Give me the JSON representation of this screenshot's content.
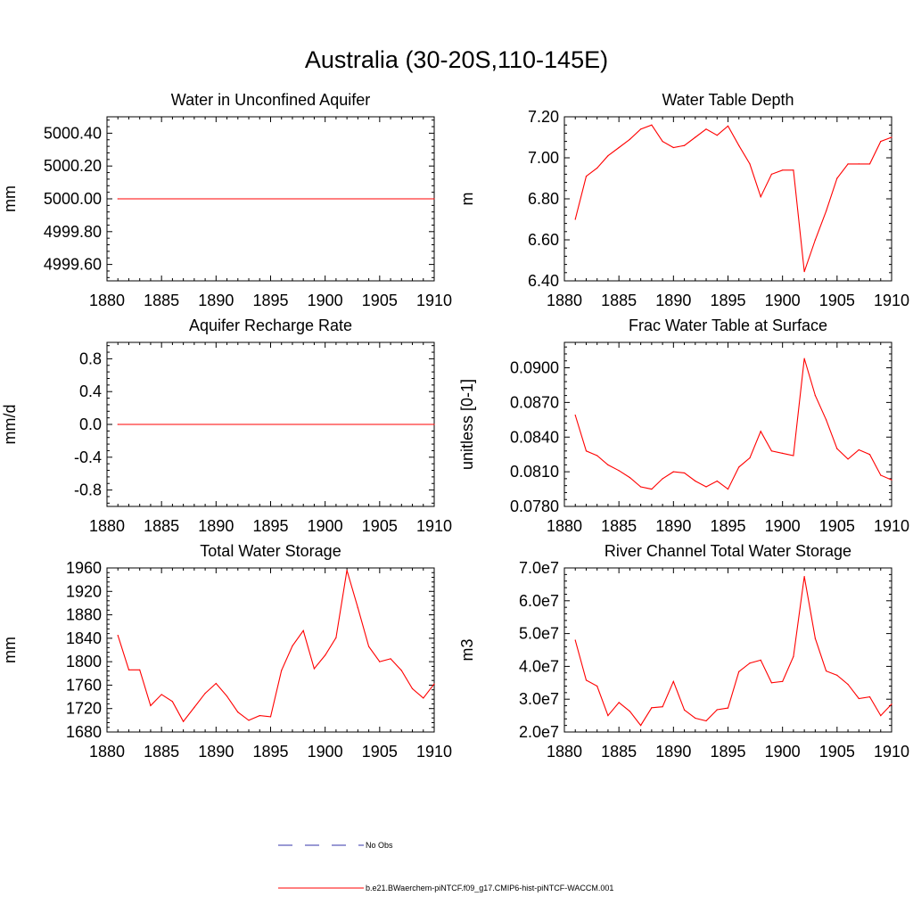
{
  "title": "Australia (30-20S,110-145E)",
  "colors": {
    "model": "#ff0000",
    "obs": "#3333aa",
    "axis": "#000000"
  },
  "legend": {
    "obs_label": "No Obs",
    "model_label": "b.e21.BWaerchem-piNTCF.f09_g17.CMIP6-hist-piNTCF-WACCM.001"
  },
  "chart_data": [
    {
      "type": "line",
      "title": "Water in Unconfined Aquifer",
      "xlabel": "",
      "ylabel": "mm",
      "xlim": [
        1880,
        1910
      ],
      "ylim": [
        4999.5,
        5000.5
      ],
      "xticks": [
        1880,
        1885,
        1890,
        1895,
        1900,
        1905,
        1910
      ],
      "xtick_labels": [
        "1880",
        "1885",
        "1890",
        "1895",
        "1900",
        "1905",
        "1910"
      ],
      "yticks": [
        4999.6,
        4999.8,
        5000.0,
        5000.2,
        5000.4
      ],
      "ytick_labels": [
        "4999.60",
        "4999.80",
        "5000.00",
        "5000.20",
        "5000.40"
      ],
      "series": [
        {
          "x": [
            1881,
            1910
          ],
          "y": [
            5000.0,
            5000.0
          ]
        }
      ]
    },
    {
      "type": "line",
      "title": "Water Table Depth",
      "xlabel": "",
      "ylabel": "m",
      "xlim": [
        1880,
        1910
      ],
      "ylim": [
        6.4,
        7.2
      ],
      "xticks": [
        1880,
        1885,
        1890,
        1895,
        1900,
        1905,
        1910
      ],
      "xtick_labels": [
        "1880",
        "1885",
        "1890",
        "1895",
        "1900",
        "1905",
        "1910"
      ],
      "yticks": [
        6.4,
        6.6,
        6.8,
        7.0,
        7.2
      ],
      "ytick_labels": [
        "6.40",
        "6.60",
        "6.80",
        "7.00",
        "7.20"
      ],
      "series": [
        {
          "x": [
            1881,
            1882,
            1883,
            1884,
            1885,
            1886,
            1887,
            1888,
            1889,
            1890,
            1891,
            1892,
            1893,
            1894,
            1895,
            1896,
            1897,
            1898,
            1899,
            1900,
            1901,
            1902,
            1903,
            1904,
            1905,
            1906,
            1907,
            1908,
            1909,
            1910
          ],
          "y": [
            6.7,
            6.91,
            6.95,
            7.01,
            7.05,
            7.09,
            7.14,
            7.16,
            7.08,
            7.05,
            7.06,
            7.1,
            7.14,
            7.11,
            7.155,
            7.06,
            6.97,
            6.81,
            6.92,
            6.94,
            6.94,
            6.445,
            6.6,
            6.74,
            6.9,
            6.97,
            6.97,
            6.97,
            7.08,
            7.1
          ]
        }
      ]
    },
    {
      "type": "line",
      "title": "Aquifer Recharge Rate",
      "xlabel": "",
      "ylabel": "mm/d",
      "xlim": [
        1880,
        1910
      ],
      "ylim": [
        -1.0,
        1.0
      ],
      "xticks": [
        1880,
        1885,
        1890,
        1895,
        1900,
        1905,
        1910
      ],
      "xtick_labels": [
        "1880",
        "1885",
        "1890",
        "1895",
        "1900",
        "1905",
        "1910"
      ],
      "yticks": [
        -0.8,
        -0.4,
        0.0,
        0.4,
        0.8
      ],
      "ytick_labels": [
        "-0.8",
        "-0.4",
        "0.0",
        "0.4",
        "0.8"
      ],
      "series": [
        {
          "x": [
            1881,
            1910
          ],
          "y": [
            0.0,
            0.0
          ]
        }
      ]
    },
    {
      "type": "line",
      "title": "Frac Water Table at Surface",
      "xlabel": "",
      "ylabel": "unitless [0-1]",
      "xlim": [
        1880,
        1910
      ],
      "ylim": [
        0.078,
        0.0922
      ],
      "xticks": [
        1880,
        1885,
        1890,
        1895,
        1900,
        1905,
        1910
      ],
      "xtick_labels": [
        "1880",
        "1885",
        "1890",
        "1895",
        "1900",
        "1905",
        "1910"
      ],
      "yticks": [
        0.078,
        0.081,
        0.084,
        0.087,
        0.09
      ],
      "ytick_labels": [
        "0.0780",
        "0.0810",
        "0.0840",
        "0.0870",
        "0.0900"
      ],
      "series": [
        {
          "x": [
            1881,
            1882,
            1883,
            1884,
            1885,
            1886,
            1887,
            1888,
            1889,
            1890,
            1891,
            1892,
            1893,
            1894,
            1895,
            1896,
            1897,
            1898,
            1899,
            1900,
            1901,
            1902,
            1903,
            1904,
            1905,
            1906,
            1907,
            1908,
            1909,
            1910
          ],
          "y": [
            0.0859,
            0.0828,
            0.0824,
            0.0816,
            0.0811,
            0.0805,
            0.0797,
            0.0795,
            0.0804,
            0.081,
            0.0809,
            0.0802,
            0.0797,
            0.0802,
            0.0795,
            0.0814,
            0.0822,
            0.0845,
            0.0828,
            0.0826,
            0.0824,
            0.0908,
            0.0876,
            0.0855,
            0.083,
            0.0821,
            0.0829,
            0.0825,
            0.0807,
            0.0803
          ]
        }
      ]
    },
    {
      "type": "line",
      "title": "Total Water Storage",
      "xlabel": "",
      "ylabel": "mm",
      "xlim": [
        1880,
        1910
      ],
      "ylim": [
        1680,
        1960
      ],
      "xticks": [
        1880,
        1885,
        1890,
        1895,
        1900,
        1905,
        1910
      ],
      "xtick_labels": [
        "1880",
        "1885",
        "1890",
        "1895",
        "1900",
        "1905",
        "1910"
      ],
      "yticks": [
        1680,
        1720,
        1760,
        1800,
        1840,
        1880,
        1920,
        1960
      ],
      "ytick_labels": [
        "1680",
        "1720",
        "1760",
        "1800",
        "1840",
        "1880",
        "1920",
        "1960"
      ],
      "series": [
        {
          "x": [
            1881,
            1882,
            1883,
            1884,
            1885,
            1886,
            1887,
            1888,
            1889,
            1890,
            1891,
            1892,
            1893,
            1894,
            1895,
            1896,
            1897,
            1898,
            1899,
            1900,
            1901,
            1902,
            1903,
            1904,
            1905,
            1906,
            1907,
            1908,
            1909,
            1910
          ],
          "y": [
            1845,
            1786,
            1786,
            1725,
            1744,
            1732,
            1698,
            1722,
            1746,
            1763,
            1741,
            1714,
            1700,
            1708,
            1706,
            1785,
            1827,
            1853,
            1788,
            1811,
            1841,
            1956,
            1892,
            1826,
            1800,
            1805,
            1785,
            1754,
            1738,
            1762
          ]
        }
      ]
    },
    {
      "type": "line",
      "title": "River Channel Total Water Storage",
      "xlabel": "",
      "ylabel": "m3",
      "xlim": [
        1880,
        1910
      ],
      "ylim": [
        20000000,
        70000000
      ],
      "xticks": [
        1880,
        1885,
        1890,
        1895,
        1900,
        1905,
        1910
      ],
      "xtick_labels": [
        "1880",
        "1885",
        "1890",
        "1895",
        "1900",
        "1905",
        "1910"
      ],
      "yticks": [
        20000000,
        30000000,
        40000000,
        50000000,
        60000000,
        70000000
      ],
      "ytick_labels": [
        "2.0e7",
        "3.0e7",
        "4.0e7",
        "5.0e7",
        "6.0e7",
        "7.0e7"
      ],
      "series": [
        {
          "x": [
            1881,
            1882,
            1883,
            1884,
            1885,
            1886,
            1887,
            1888,
            1889,
            1890,
            1891,
            1892,
            1893,
            1894,
            1895,
            1896,
            1897,
            1898,
            1899,
            1900,
            1901,
            1902,
            1903,
            1904,
            1905,
            1906,
            1907,
            1908,
            1909,
            1910
          ],
          "y": [
            48000000,
            35800000,
            34000000,
            25000000,
            29000000,
            26300000,
            22000000,
            27400000,
            27700000,
            35400000,
            26700000,
            24200000,
            23400000,
            26800000,
            27300000,
            38400000,
            41000000,
            41900000,
            35000000,
            35400000,
            43000000,
            67400000,
            48500000,
            38600000,
            37300000,
            34500000,
            30200000,
            30700000,
            25000000,
            28500000
          ]
        }
      ]
    }
  ]
}
